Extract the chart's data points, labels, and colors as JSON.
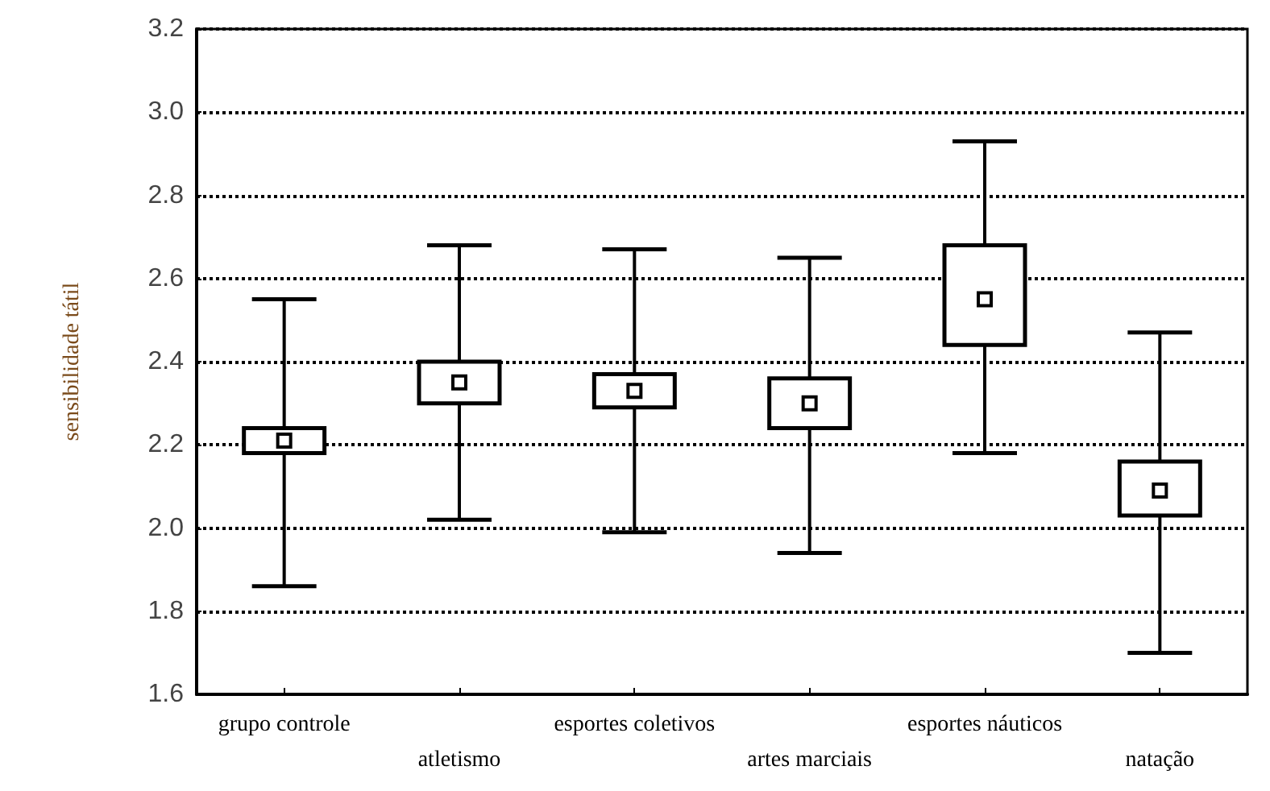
{
  "chart_data": {
    "type": "box",
    "ylabel": "sensibilidade tátil",
    "categories": [
      "grupo controle",
      "atletismo",
      "esportes coletivos",
      "artes marciais",
      "esportes náuticos",
      "natação"
    ],
    "boxes": [
      {
        "low": 1.86,
        "q1": 2.18,
        "median": 2.21,
        "q3": 2.24,
        "high": 2.55
      },
      {
        "low": 2.02,
        "q1": 2.3,
        "median": 2.35,
        "q3": 2.4,
        "high": 2.68
      },
      {
        "low": 1.99,
        "q1": 2.29,
        "median": 2.33,
        "q3": 2.37,
        "high": 2.67
      },
      {
        "low": 1.94,
        "q1": 2.24,
        "median": 2.3,
        "q3": 2.36,
        "high": 2.65
      },
      {
        "low": 2.18,
        "q1": 2.44,
        "median": 2.55,
        "q3": 2.68,
        "high": 2.93
      },
      {
        "low": 1.7,
        "q1": 2.03,
        "median": 2.09,
        "q3": 2.16,
        "high": 2.47
      }
    ],
    "color": "#000000",
    "marker": "square",
    "ylim": [
      1.6,
      3.2
    ],
    "yticks": [
      1.6,
      1.8,
      {
        "value": 2,
        "label": "2.0"
      },
      2.2,
      2.4,
      2.6,
      2.8,
      {
        "value": 3,
        "label": "3.0"
      },
      3.2
    ],
    "grid": true,
    "line_style": "dotted"
  }
}
